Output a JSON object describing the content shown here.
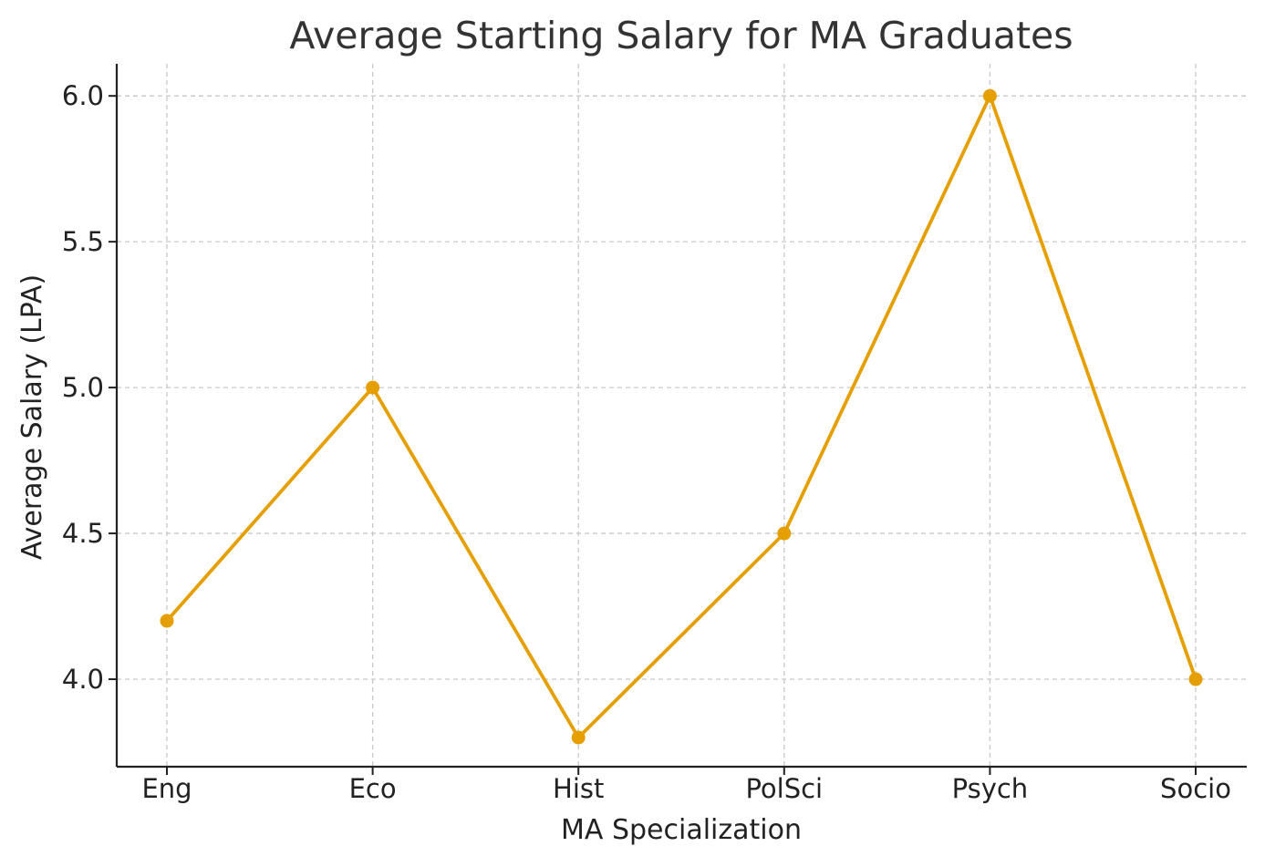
{
  "chart_data": {
    "type": "line",
    "title": "Average Starting Salary for MA Graduates",
    "xlabel": "MA Specialization",
    "ylabel": "Average Salary (LPA)",
    "categories": [
      "Eng",
      "Eco",
      "Hist",
      "PolSci",
      "Psych",
      "Socio"
    ],
    "series": [
      {
        "values": [
          4.2,
          5.0,
          3.8,
          4.5,
          6.0,
          4.0
        ],
        "color": "#e69f00",
        "marker": "circle"
      }
    ],
    "ylim": [
      3.7,
      6.11
    ],
    "yticks": [
      4.0,
      4.5,
      5.0,
      5.5,
      6.0
    ],
    "ytick_labels": [
      "4.0",
      "4.5",
      "5.0",
      "5.5",
      "6.0"
    ],
    "grid": true,
    "grid_style": "dashed"
  }
}
